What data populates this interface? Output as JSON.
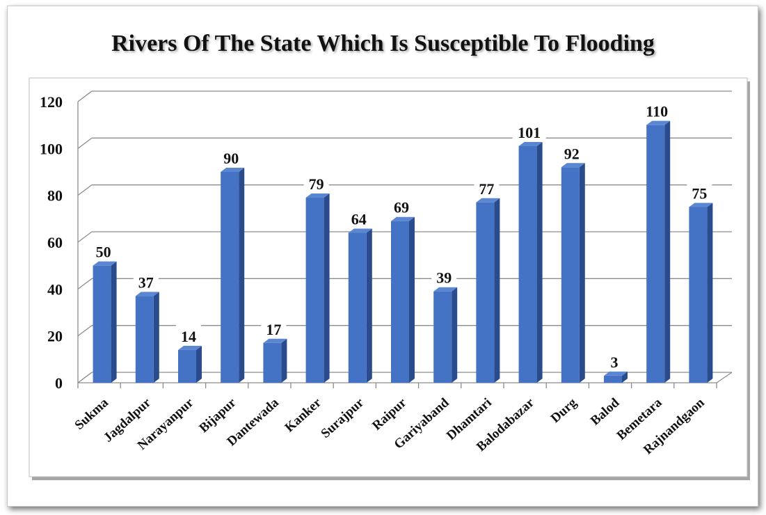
{
  "chart_data": {
    "type": "bar",
    "title": "Rivers  Of The State Which Is Susceptible To Flooding",
    "xlabel": "",
    "ylabel": "",
    "categories": [
      "Sukma",
      "Jagdalpur",
      "Narayanpur",
      "Bijapur",
      "Dantewada",
      "Kanker",
      "Surajpur",
      "Raipur",
      "Gariyaband",
      "Dhamtari",
      "Balodabazar",
      "Durg",
      "Balod",
      "Bemetara",
      "Rajnandgaon"
    ],
    "values": [
      50,
      37,
      14,
      90,
      17,
      79,
      64,
      69,
      39,
      77,
      101,
      92,
      3,
      110,
      75
    ],
    "ylim": [
      0,
      120
    ],
    "yticks": [
      0,
      20,
      40,
      60,
      80,
      100,
      120
    ],
    "grid": true,
    "legend": "none",
    "data_labels": true,
    "colors": {
      "bar_front": "#4472c4",
      "bar_side": "#2a4c8c",
      "bar_top": "#5b86d2",
      "grid": "#8c8c8c",
      "text": "#111111"
    }
  }
}
